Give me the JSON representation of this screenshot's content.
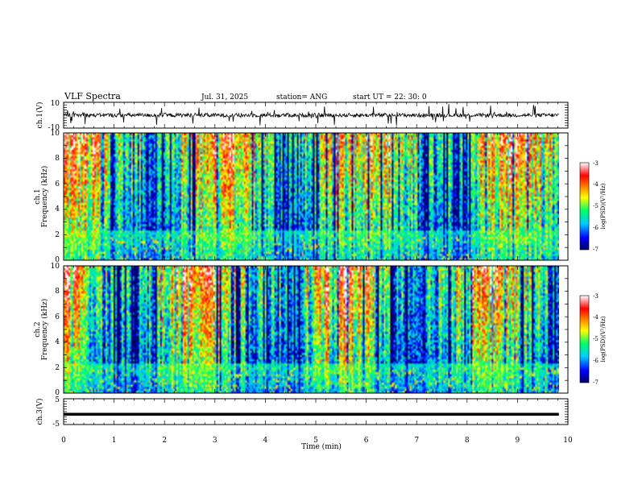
{
  "header": {
    "title": "VLF Spectra",
    "date": "Jul. 31, 2025",
    "station": "station= ANG",
    "start": "start  UT =  22: 30: 0"
  },
  "chart_data": [
    {
      "type": "line",
      "name": "ch1-waveform",
      "ylabel": "ch.1(V)",
      "ylim": [
        -10,
        10
      ],
      "y_ticks": [
        "10",
        "-10"
      ],
      "baseline": 0,
      "x_range_min": [
        0,
        9.82
      ]
    },
    {
      "type": "heatmap",
      "name": "ch1-spectrogram",
      "ylabel_top": "ch.1",
      "ylabel": "Frequency (kHz)",
      "ylim": [
        0,
        10
      ],
      "y_ticks": [
        "0",
        "2",
        "4",
        "6",
        "8",
        "10"
      ],
      "colorbar": {
        "label": "log(PSD)(V²/Hz)",
        "range": [
          -7,
          -3
        ],
        "ticks": [
          "-3",
          "-4",
          "-5",
          "-6",
          "-7"
        ],
        "colors": [
          "#000066",
          "#0000ff",
          "#00ccff",
          "#00ff66",
          "#ffff00",
          "#ff8800",
          "#ff0000",
          "#ffffff"
        ]
      },
      "x_range_min": [
        0,
        9.82
      ]
    },
    {
      "type": "heatmap",
      "name": "ch2-spectrogram",
      "ylabel_top": "ch.2",
      "ylabel": "Frequency (kHz)",
      "ylim": [
        0,
        10
      ],
      "y_ticks": [
        "0",
        "2",
        "4",
        "6",
        "8",
        "10"
      ],
      "colorbar": {
        "label": "log(PSD)(V²/Hz)",
        "range": [
          -7,
          -3
        ],
        "ticks": [
          "-3",
          "-4",
          "-5",
          "-6",
          "-7"
        ],
        "colors": [
          "#000066",
          "#0000ff",
          "#00ccff",
          "#00ff66",
          "#ffff00",
          "#ff8800",
          "#ff0000",
          "#ffffff"
        ]
      },
      "x_range_min": [
        0,
        9.82
      ]
    },
    {
      "type": "line",
      "name": "ch3-waveform",
      "ylabel": "ch.3(V)",
      "ylim": [
        -5,
        5
      ],
      "y_ticks": [
        "5",
        "-5"
      ],
      "baseline": -1,
      "x_range_min": [
        0,
        9.82
      ]
    }
  ],
  "x_axis": {
    "label": "Time (min)",
    "range": [
      0,
      10
    ],
    "ticks": [
      "0",
      "1",
      "2",
      "3",
      "4",
      "5",
      "6",
      "7",
      "8",
      "9",
      "10"
    ]
  }
}
